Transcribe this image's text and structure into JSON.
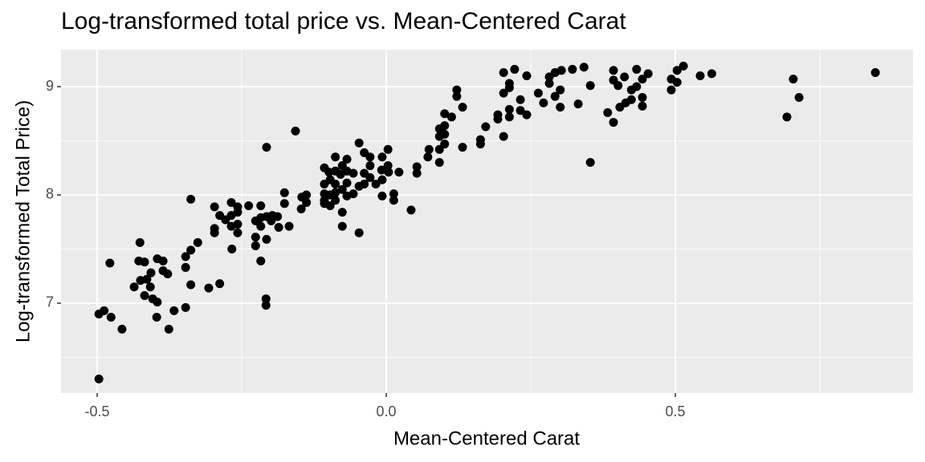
{
  "chart_data": {
    "type": "scatter",
    "title": "Log-transformed total price vs. Mean-Centered Carat",
    "x_label": "Mean-Centered Carat",
    "y_label": "Log-transformed Total Price)",
    "color": "#000000",
    "grid": true,
    "xlim": [
      -0.5625,
      0.911
    ],
    "ylim": [
      6.17,
      9.341
    ],
    "xticks": [
      -0.5,
      {
        "value": 0,
        "label": "0.0"
      },
      0.5
    ],
    "yticks": [
      7,
      8,
      9
    ],
    "x_minor_gridlines": [
      -0.25,
      0.25,
      0.75
    ],
    "y_minor_gridlines": [
      6.5,
      7.5,
      8.5
    ],
    "x": [
      -0.497,
      -0.497,
      -0.488,
      -0.476,
      -0.457,
      -0.478,
      -0.436,
      -0.426,
      -0.428,
      -0.418,
      -0.425,
      -0.414,
      -0.407,
      -0.408,
      -0.418,
      -0.404,
      -0.396,
      -0.397,
      -0.396,
      -0.386,
      -0.386,
      -0.378,
      -0.376,
      -0.367,
      -0.347,
      -0.347,
      -0.347,
      -0.338,
      -0.326,
      -0.338,
      -0.338,
      -0.307,
      -0.288,
      -0.297,
      -0.297,
      -0.297,
      -0.288,
      -0.278,
      -0.268,
      -0.268,
      -0.257,
      -0.268,
      -0.257,
      -0.267,
      -0.257,
      -0.257,
      -0.238,
      -0.226,
      -0.226,
      -0.226,
      -0.217,
      -0.217,
      -0.217,
      -0.217,
      -0.207,
      -0.207,
      -0.207,
      -0.208,
      -0.208,
      -0.199,
      -0.197,
      -0.188,
      -0.186,
      -0.176,
      -0.176,
      -0.168,
      -0.157,
      -0.147,
      -0.146,
      -0.138,
      -0.138,
      -0.107,
      -0.107,
      -0.107,
      -0.107,
      -0.107,
      -0.099,
      -0.097,
      -0.097,
      -0.097,
      -0.088,
      -0.088,
      -0.088,
      -0.088,
      -0.088,
      -0.079,
      -0.076,
      -0.076,
      -0.076,
      -0.076,
      -0.068,
      -0.068,
      -0.068,
      -0.068,
      -0.057,
      -0.057,
      -0.047,
      -0.047,
      -0.047,
      -0.038,
      -0.038,
      -0.038,
      -0.028,
      -0.028,
      -0.028,
      -0.018,
      -0.008,
      -0.007,
      -0.007,
      -0.007,
      0.003,
      0.003,
      0.004,
      0.013,
      0.013,
      0.022,
      0.043,
      0.053,
      0.053,
      0.072,
      0.074,
      0.092,
      0.092,
      0.092,
      0.092,
      0.101,
      0.101,
      0.101,
      0.101,
      0.113,
      0.122,
      0.122,
      0.132,
      0.132,
      0.163,
      0.163,
      0.172,
      0.193,
      0.193,
      0.203,
      0.203,
      0.203,
      0.213,
      0.213,
      0.213,
      0.213,
      0.222,
      0.232,
      0.232,
      0.243,
      0.243,
      0.263,
      0.272,
      0.282,
      0.282,
      0.292,
      0.292,
      0.301,
      0.301,
      0.303,
      0.322,
      0.332,
      0.342,
      0.353,
      0.353,
      0.383,
      0.393,
      0.393,
      0.393,
      0.401,
      0.404,
      0.412,
      0.414,
      0.424,
      0.424,
      0.433,
      0.433,
      0.443,
      0.443,
      0.443,
      0.453,
      0.493,
      0.493,
      0.503,
      0.503,
      0.514,
      0.543,
      0.563,
      0.693,
      0.704,
      0.714,
      0.846
    ],
    "values": [
      6.3,
      6.9,
      6.93,
      6.87,
      6.76,
      7.37,
      7.15,
      7.56,
      7.39,
      7.38,
      7.21,
      7.22,
      7.28,
      7.15,
      7.07,
      7.04,
      7.01,
      6.87,
      7.41,
      7.39,
      7.3,
      7.27,
      6.76,
      6.93,
      6.96,
      7.43,
      7.33,
      7.49,
      7.56,
      7.96,
      7.17,
      7.14,
      7.18,
      7.89,
      7.69,
      7.65,
      7.81,
      7.77,
      7.81,
      7.93,
      7.89,
      7.71,
      7.73,
      7.5,
      7.65,
      7.84,
      7.9,
      7.76,
      7.61,
      7.53,
      7.9,
      7.79,
      7.71,
      7.39,
      7.59,
      7.8,
      8.44,
      7.04,
      6.98,
      7.76,
      7.81,
      7.8,
      7.7,
      8.02,
      7.92,
      7.71,
      8.59,
      7.87,
      7.98,
      8.0,
      7.93,
      8.25,
      8.1,
      8.01,
      7.95,
      7.92,
      8.21,
      8.14,
      7.9,
      8.0,
      8.35,
      8.22,
      8.1,
      8.02,
      7.95,
      8.19,
      8.27,
      8.05,
      7.71,
      7.84,
      8.33,
      8.22,
      8.11,
      7.99,
      8.2,
      8.01,
      7.65,
      8.48,
      8.08,
      8.39,
      8.2,
      8.1,
      8.27,
      8.16,
      8.35,
      8.1,
      8.23,
      8.35,
      7.99,
      8.14,
      8.42,
      8.27,
      8.21,
      8.01,
      7.95,
      8.21,
      7.86,
      8.26,
      8.2,
      8.35,
      8.42,
      8.3,
      8.42,
      8.54,
      8.61,
      8.75,
      8.64,
      8.56,
      8.47,
      8.72,
      8.97,
      8.91,
      8.44,
      8.81,
      8.51,
      8.47,
      8.63,
      8.7,
      8.74,
      9.13,
      8.94,
      8.54,
      9.03,
      8.79,
      8.72,
      8.99,
      9.16,
      8.88,
      8.78,
      8.74,
      9.1,
      8.94,
      8.85,
      9.09,
      9.03,
      9.13,
      8.91,
      8.97,
      8.81,
      9.15,
      9.16,
      8.84,
      9.18,
      9.01,
      8.3,
      8.76,
      9.06,
      9.15,
      8.67,
      9.01,
      8.81,
      9.09,
      8.85,
      8.97,
      8.88,
      9.0,
      9.16,
      8.9,
      8.82,
      9.07,
      9.12,
      8.97,
      9.07,
      9.04,
      9.15,
      9.19,
      9.1,
      9.12,
      8.72,
      9.07,
      8.9,
      9.13
    ]
  }
}
